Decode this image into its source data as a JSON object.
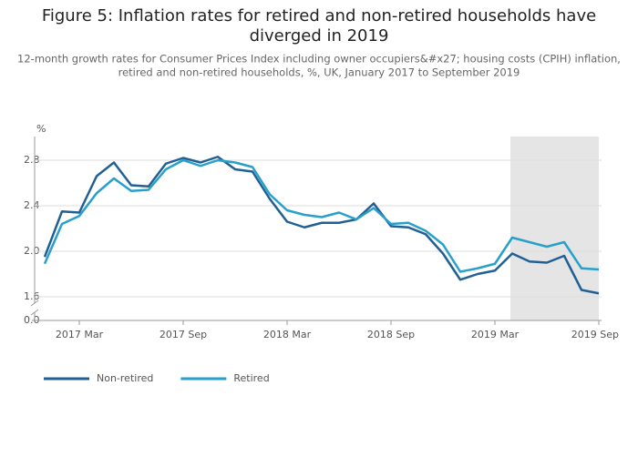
{
  "chart_data": {
    "type": "line",
    "title": [
      "Figure 5: Inflation rates for retired and non-retired households have",
      "diverged in 2019"
    ],
    "subtitle": [
      "12-month growth rates for Consumer Prices Index including owner occupiers&#x27; housing costs (CPIH) inflation,",
      "retired and non-retired households, %, UK, January 2017 to September 2019"
    ],
    "y_label": "%",
    "x": [
      "2017 Jan",
      "2017 Feb",
      "2017 Mar",
      "2017 Apr",
      "2017 May",
      "2017 Jun",
      "2017 Jul",
      "2017 Aug",
      "2017 Sep",
      "2017 Oct",
      "2017 Nov",
      "2017 Dec",
      "2018 Jan",
      "2018 Feb",
      "2018 Mar",
      "2018 Apr",
      "2018 May",
      "2018 Jun",
      "2018 Jul",
      "2018 Aug",
      "2018 Sep",
      "2018 Oct",
      "2018 Nov",
      "2018 Dec",
      "2019 Jan",
      "2019 Feb",
      "2019 Mar",
      "2019 Apr",
      "2019 May",
      "2019 Jun",
      "2019 Jul",
      "2019 Aug",
      "2019 Sep"
    ],
    "xticks": [
      "2017 Mar",
      "2017 Sep",
      "2018 Mar",
      "2018 Sep",
      "2019 Mar",
      "2019 Sep"
    ],
    "series": [
      {
        "name": "Non-retired",
        "color": "#206095",
        "values": [
          1.95,
          2.35,
          2.34,
          2.66,
          2.78,
          2.58,
          2.57,
          2.77,
          2.82,
          2.78,
          2.83,
          2.72,
          2.7,
          2.46,
          2.26,
          2.21,
          2.25,
          2.25,
          2.28,
          2.42,
          2.22,
          2.21,
          2.15,
          1.98,
          1.75,
          1.8,
          1.83,
          1.98,
          1.91,
          1.9,
          1.96,
          1.66,
          1.63
        ]
      },
      {
        "name": "Retired",
        "color": "#27a0cc",
        "values": [
          1.89,
          2.24,
          2.31,
          2.51,
          2.64,
          2.53,
          2.54,
          2.72,
          2.8,
          2.75,
          2.8,
          2.78,
          2.74,
          2.5,
          2.36,
          2.32,
          2.3,
          2.34,
          2.28,
          2.38,
          2.24,
          2.25,
          2.18,
          2.06,
          1.82,
          1.85,
          1.89,
          2.12,
          2.08,
          2.04,
          2.08,
          1.85,
          1.84
        ]
      }
    ],
    "ylim": [
      1.6,
      3.0
    ],
    "yticks": [
      {
        "value": 0,
        "label": "0.0"
      },
      1.6,
      {
        "value": 2,
        "label": "2.0"
      },
      2.4,
      2.8
    ],
    "axis_break": true,
    "grid": true,
    "highlight": {
      "from": "2019 Apr",
      "to": "2019 Sep",
      "color": "#e5e5e5"
    },
    "legend": "bottom-left"
  }
}
